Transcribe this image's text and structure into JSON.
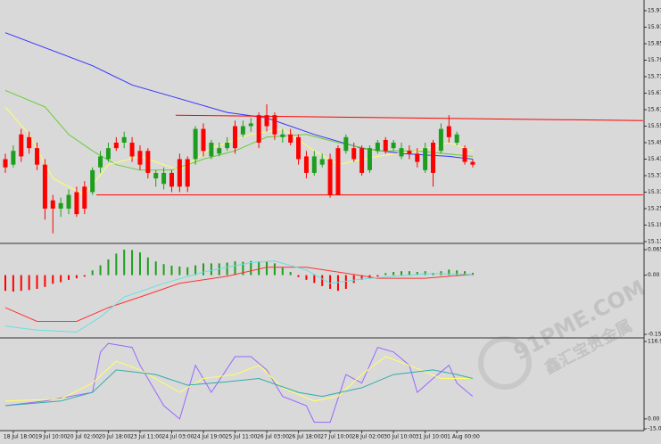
{
  "chart_data": [
    {
      "type": "candlestick",
      "categories": [
        null,
        "18 Jul 18:00",
        null,
        null,
        null,
        "19 Jul 10:00",
        null,
        null,
        null,
        "20 Jul 02:00",
        null,
        null,
        null,
        "20 Jul 18:00",
        null,
        null,
        null,
        "23 Jul 11:00",
        null,
        null,
        null,
        "24 Jul 03:00",
        null,
        null,
        null,
        "24 Jul 19:00",
        null,
        null,
        null,
        "25 Jul 11:00",
        null,
        null,
        null,
        "26 Jul 03:00",
        null,
        null,
        null,
        "26 Jul 18:00",
        null,
        null,
        null,
        "27 Jul 10:00",
        null,
        null,
        null,
        "28 Jul 02:00",
        null,
        null,
        null,
        "30 Jul 10:00",
        null,
        null,
        null,
        "31 Jul 10:00",
        null,
        null,
        null,
        "1 Aug 00:00",
        null,
        null
      ],
      "open": [
        15.43,
        15.41,
        15.52,
        15.51,
        15.47,
        15.41,
        15.28,
        15.25,
        15.25,
        15.31,
        15.33,
        15.31,
        15.4,
        15.43,
        15.49,
        15.49,
        15.49,
        15.46,
        15.46,
        15.36,
        15.34,
        15.38,
        15.43,
        15.43,
        15.43,
        15.54,
        15.44,
        15.45,
        15.47,
        15.55,
        15.52,
        15.55,
        15.59,
        15.59,
        15.59,
        15.51,
        15.52,
        15.51,
        15.44,
        15.38,
        15.41,
        15.43,
        15.47,
        15.46,
        15.47,
        15.47,
        15.39,
        15.46,
        15.5,
        15.47,
        15.44,
        15.46,
        15.45,
        15.39,
        15.49,
        15.46,
        15.55,
        15.49,
        15.47,
        15.42
      ],
      "high": [
        15.45,
        15.48,
        15.54,
        15.53,
        15.49,
        15.43,
        15.3,
        15.29,
        15.32,
        15.33,
        15.35,
        15.4,
        15.46,
        15.49,
        15.51,
        15.53,
        15.51,
        15.48,
        15.47,
        15.39,
        15.4,
        15.39,
        15.45,
        15.44,
        15.55,
        15.56,
        15.5,
        15.49,
        15.51,
        15.57,
        15.57,
        15.58,
        15.6,
        15.63,
        15.6,
        15.54,
        15.54,
        15.52,
        15.46,
        15.46,
        15.45,
        15.45,
        15.48,
        15.52,
        15.49,
        15.48,
        15.48,
        15.5,
        15.51,
        15.5,
        15.49,
        15.48,
        15.47,
        15.49,
        15.5,
        15.56,
        15.59,
        15.53,
        15.48,
        15.43
      ],
      "low": [
        15.38,
        15.4,
        15.42,
        15.45,
        15.39,
        15.21,
        15.16,
        15.22,
        15.23,
        15.22,
        15.23,
        15.3,
        15.38,
        15.42,
        15.46,
        15.47,
        15.42,
        15.39,
        15.36,
        15.33,
        15.32,
        15.31,
        15.31,
        15.31,
        15.41,
        15.44,
        15.43,
        15.44,
        15.46,
        15.45,
        15.51,
        15.53,
        15.47,
        15.53,
        15.5,
        15.49,
        15.48,
        15.41,
        15.36,
        15.37,
        15.4,
        15.29,
        15.3,
        15.45,
        15.42,
        15.37,
        15.38,
        15.45,
        15.45,
        15.46,
        15.43,
        15.43,
        15.4,
        15.38,
        15.33,
        15.45,
        15.49,
        15.48,
        15.41,
        15.4
      ],
      "close": [
        15.4,
        15.46,
        15.44,
        15.47,
        15.41,
        15.25,
        15.25,
        15.27,
        15.3,
        15.23,
        15.25,
        15.39,
        15.44,
        15.47,
        15.47,
        15.51,
        15.44,
        15.41,
        15.38,
        15.38,
        15.38,
        15.33,
        15.33,
        15.33,
        15.54,
        15.46,
        15.49,
        15.47,
        15.49,
        15.47,
        15.55,
        15.56,
        15.49,
        15.55,
        15.52,
        15.52,
        15.49,
        15.43,
        15.38,
        15.44,
        15.43,
        15.3,
        15.3,
        15.51,
        15.43,
        15.38,
        15.47,
        15.49,
        15.46,
        15.49,
        15.47,
        15.45,
        15.42,
        15.47,
        15.38,
        15.54,
        15.51,
        15.52,
        15.42,
        15.41
      ],
      "colors": {
        "up": "#1e9e1e",
        "down": "#ff0000"
      },
      "lines": [
        {
          "color": "#3333ff",
          "x": [
            0,
            11,
            16,
            22,
            28,
            33,
            39,
            45,
            50,
            56,
            59
          ],
          "values": [
            15.89,
            15.77,
            15.7,
            15.65,
            15.6,
            15.58,
            15.52,
            15.47,
            15.45,
            15.44,
            15.43
          ]
        },
        {
          "color": "#66cc33",
          "x": [
            0,
            5,
            8,
            11,
            14,
            17,
            21,
            25,
            29,
            33,
            38,
            42,
            47,
            52,
            59
          ],
          "values": [
            15.68,
            15.62,
            15.52,
            15.46,
            15.41,
            15.39,
            15.39,
            15.43,
            15.46,
            15.51,
            15.52,
            15.49,
            15.46,
            15.46,
            15.44
          ]
        },
        {
          "color": "#ffff66",
          "x": [
            0,
            3,
            6,
            10,
            13,
            17,
            22,
            26,
            31,
            35,
            39,
            42,
            47,
            52,
            56,
            59
          ],
          "values": [
            15.62,
            15.52,
            15.36,
            15.3,
            15.41,
            15.44,
            15.39,
            15.47,
            15.52,
            15.54,
            15.46,
            15.41,
            15.44,
            15.46,
            15.49,
            15.46
          ]
        },
        {
          "color": "#ff0000",
          "x": [
            21.5,
            80.5
          ],
          "values": [
            15.59,
            15.57
          ]
        },
        {
          "color": "#ff0000",
          "x": [
            11.5,
            80.5
          ],
          "values": [
            15.3,
            15.3
          ]
        }
      ],
      "ylim": [
        15.13,
        15.97
      ],
      "yticks": [
        15.97,
        15.91,
        15.85,
        15.79,
        15.73,
        15.67,
        15.61,
        15.55,
        15.49,
        15.43,
        15.37,
        15.31,
        15.25,
        15.19,
        15.13
      ]
    },
    {
      "type": "bar",
      "values": [
        -0.04,
        -0.042,
        -0.04,
        -0.038,
        -0.035,
        -0.03,
        -0.022,
        -0.018,
        -0.012,
        -0.008,
        -0.004,
        0.012,
        0.025,
        0.04,
        0.055,
        0.065,
        0.064,
        0.058,
        0.045,
        0.035,
        0.028,
        0.024,
        0.022,
        0.02,
        0.025,
        0.03,
        0.03,
        0.03,
        0.032,
        0.035,
        0.034,
        0.036,
        0.035,
        0.035,
        0.03,
        0.02,
        0.008,
        -0.005,
        -0.012,
        -0.02,
        -0.028,
        -0.035,
        -0.04,
        -0.035,
        -0.02,
        -0.012,
        -0.008,
        -0.004,
        0.005,
        0.008,
        0.01,
        0.01,
        0.008,
        0.01,
        0.006,
        0.01,
        0.014,
        0.012,
        0.01,
        0.006
      ],
      "colors": {
        "up": "#1e9e1e",
        "down": "#ff0000"
      },
      "lines": [
        {
          "color": "#ff3333",
          "x": [
            0,
            4,
            9,
            13,
            18,
            22,
            28,
            33,
            38,
            42,
            47,
            53,
            59
          ],
          "values": [
            -0.083,
            -0.118,
            -0.118,
            -0.083,
            -0.049,
            -0.021,
            -0.003,
            0.02,
            0.02,
            0.008,
            -0.008,
            -0.008,
            0.002
          ]
        },
        {
          "color": "#66e0e0",
          "x": [
            0,
            4,
            9,
            12,
            15,
            20,
            25,
            31,
            34,
            38,
            41,
            45,
            49,
            54,
            59
          ],
          "values": [
            -0.13,
            -0.14,
            -0.145,
            -0.107,
            -0.056,
            -0.021,
            0.008,
            0.032,
            0.036,
            0.013,
            -0.021,
            -0.01,
            -0.003,
            0.004,
            0.002
          ]
        }
      ],
      "ylim": [
        -0.151,
        0.065
      ],
      "yticks": [
        0.065,
        {
          "value": 0,
          "label": "0.00"
        },
        -0.151
      ]
    },
    {
      "type": "line",
      "lines": [
        {
          "color": "#9966ff",
          "x": [
            0,
            5,
            11,
            12,
            13,
            16,
            17,
            20,
            22,
            24,
            26,
            29,
            31,
            33,
            35,
            38,
            39,
            41,
            43,
            45,
            47,
            49,
            51,
            52,
            54,
            56,
            57,
            59
          ],
          "values": [
            20,
            27,
            40,
            101,
            114,
            108,
            81,
            20,
            0,
            81,
            40,
            94,
            94,
            74,
            34,
            20,
            -5,
            -5,
            67,
            54,
            108,
            101,
            81,
            40,
            61,
            81,
            54,
            34
          ]
        },
        {
          "color": "#ffff66",
          "x": [
            0,
            7,
            11,
            14,
            17,
            22,
            25,
            29,
            32,
            35,
            39,
            42,
            45,
            48,
            51,
            55,
            59
          ],
          "values": [
            27,
            30,
            54,
            87,
            74,
            40,
            61,
            67,
            81,
            47,
            27,
            34,
            67,
            94,
            81,
            61,
            61
          ]
        },
        {
          "color": "#33aaaa",
          "x": [
            0,
            7,
            11,
            14,
            19,
            23,
            28,
            32,
            37,
            40,
            45,
            49,
            54,
            57,
            59
          ],
          "values": [
            20,
            27,
            40,
            74,
            67,
            51,
            56,
            61,
            40,
            34,
            47,
            67,
            74,
            67,
            61
          ]
        }
      ],
      "ylim": [
        -15,
        116.9
      ],
      "yticks": [
        116.9,
        {
          "value": 0,
          "label": "0.00"
        },
        {
          "value": -15,
          "label": "-15.0"
        }
      ]
    }
  ],
  "watermark": {
    "site": "91PME.COM",
    "name": "鑫汇宝贵金属"
  }
}
